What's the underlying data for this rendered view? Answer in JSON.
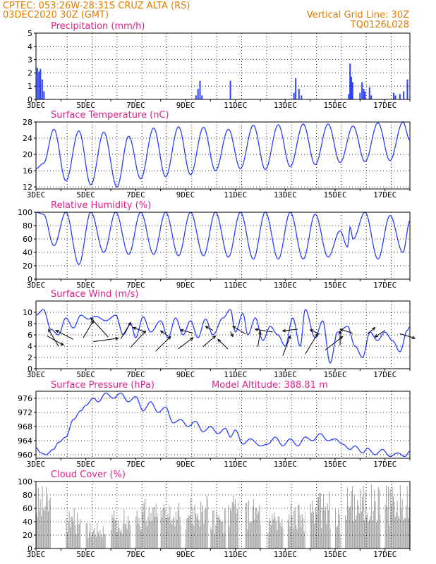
{
  "header": {
    "line1": "CPTEC:   053:26W-28:31S   CRUZ ALTA (RS)",
    "line2": "03DEC2020 30Z (GMT)",
    "right1": "Vertical Grid Line: 30Z",
    "right2": "TQ0126L028"
  },
  "x_axis": {
    "tick_labels": [
      "3DEC",
      "5DEC",
      "7DEC",
      "9DEC",
      "11DEC",
      "13DEC",
      "15DEC",
      "17DEC"
    ],
    "start_day": 3,
    "end_day": 18
  },
  "colors": {
    "series": "#2b3fff",
    "cloud": "#a0a0a0",
    "title": "#e0208a",
    "header": "#e07b00"
  },
  "chart_data": [
    {
      "id": "precip",
      "type": "bar",
      "title": "Precipitation (mm/h)",
      "ylim": [
        0,
        5
      ],
      "yticks": [
        0,
        1,
        2,
        3,
        4,
        5
      ],
      "x_units": "day of December 2020",
      "bars": [
        [
          3.05,
          2.4
        ],
        [
          3.12,
          2.1
        ],
        [
          3.18,
          2.3
        ],
        [
          3.25,
          1.5
        ],
        [
          3.32,
          0.6
        ],
        [
          9.42,
          0.3
        ],
        [
          9.5,
          0.8
        ],
        [
          9.58,
          1.4
        ],
        [
          9.66,
          0.3
        ],
        [
          10.8,
          1.4
        ],
        [
          13.35,
          0.5
        ],
        [
          13.42,
          1.6
        ],
        [
          13.55,
          0.8
        ],
        [
          13.65,
          0.3
        ],
        [
          15.55,
          0.4
        ],
        [
          15.6,
          2.7
        ],
        [
          15.65,
          1.7
        ],
        [
          15.7,
          1.3
        ],
        [
          16.0,
          0.5
        ],
        [
          16.08,
          1.3
        ],
        [
          16.15,
          0.8
        ],
        [
          16.2,
          0.6
        ],
        [
          16.38,
          0.9
        ],
        [
          16.45,
          0.3
        ],
        [
          17.35,
          0.5
        ],
        [
          17.42,
          0.3
        ],
        [
          17.6,
          0.4
        ],
        [
          17.75,
          0.6
        ],
        [
          17.9,
          1.5
        ]
      ]
    },
    {
      "id": "temp",
      "type": "line",
      "title": "Surface Temperature (nC)",
      "ylim": [
        11.5,
        28
      ],
      "yticks": [
        12,
        16,
        20,
        24,
        28
      ],
      "min_max": [
        [
          3.0,
          16.5
        ],
        [
          3.3,
          17.8
        ],
        [
          3.72,
          26.2
        ],
        [
          4.2,
          13.5
        ],
        [
          4.72,
          25.8
        ],
        [
          5.2,
          12.5
        ],
        [
          5.72,
          25.5
        ],
        [
          6.25,
          12
        ],
        [
          6.72,
          24.5
        ],
        [
          7.2,
          14
        ],
        [
          7.72,
          26.5
        ],
        [
          8.2,
          14.5
        ],
        [
          8.72,
          26.8
        ],
        [
          9.2,
          15
        ],
        [
          9.72,
          26.7
        ],
        [
          10.2,
          16
        ],
        [
          10.72,
          26.2
        ],
        [
          11.2,
          16.5
        ],
        [
          11.72,
          27.2
        ],
        [
          12.2,
          16.3
        ],
        [
          12.72,
          27.3
        ],
        [
          13.2,
          17
        ],
        [
          13.72,
          27.5
        ],
        [
          14.2,
          17.5
        ],
        [
          14.72,
          27.5
        ],
        [
          15.2,
          18
        ],
        [
          15.72,
          27
        ],
        [
          16.2,
          18.2
        ],
        [
          16.72,
          27.8
        ],
        [
          17.2,
          18.5
        ],
        [
          17.72,
          28
        ],
        [
          18.0,
          23.5
        ]
      ]
    },
    {
      "id": "rh",
      "type": "line",
      "title": "Relative Humidity (%)",
      "ylim": [
        0,
        100
      ],
      "yticks": [
        0,
        20,
        40,
        60,
        80,
        100
      ],
      "min_max": [
        [
          3.0,
          100
        ],
        [
          3.3,
          97
        ],
        [
          3.72,
          50
        ],
        [
          4.2,
          100
        ],
        [
          4.72,
          22
        ],
        [
          5.2,
          100
        ],
        [
          5.72,
          40
        ],
        [
          6.2,
          100
        ],
        [
          6.72,
          37
        ],
        [
          7.2,
          100
        ],
        [
          7.72,
          37
        ],
        [
          8.2,
          100
        ],
        [
          8.72,
          35
        ],
        [
          9.2,
          100
        ],
        [
          9.72,
          35
        ],
        [
          10.2,
          100
        ],
        [
          10.72,
          33
        ],
        [
          11.2,
          100
        ],
        [
          11.72,
          30
        ],
        [
          12.2,
          100
        ],
        [
          12.72,
          30
        ],
        [
          13.2,
          100
        ],
        [
          13.72,
          30
        ],
        [
          14.2,
          97
        ],
        [
          14.72,
          33
        ],
        [
          15.2,
          72
        ],
        [
          15.5,
          48
        ],
        [
          15.6,
          78
        ],
        [
          15.72,
          60
        ],
        [
          16.2,
          100
        ],
        [
          16.72,
          30
        ],
        [
          17.2,
          95
        ],
        [
          17.72,
          40
        ],
        [
          18.0,
          87
        ]
      ]
    },
    {
      "id": "wind",
      "type": "line",
      "title": "Surface Wind (m/s)",
      "ylim": [
        0,
        12
      ],
      "yticks": [
        0,
        2,
        4,
        6,
        8,
        10
      ],
      "min_max": [
        [
          3.0,
          9.5
        ],
        [
          3.3,
          10.5
        ],
        [
          3.6,
          7
        ],
        [
          3.9,
          6
        ],
        [
          4.2,
          9
        ],
        [
          4.5,
          7.2
        ],
        [
          4.8,
          9.5
        ],
        [
          5.1,
          8.8
        ],
        [
          5.4,
          9.3
        ],
        [
          5.8,
          8.5
        ],
        [
          6.2,
          9.5
        ],
        [
          6.5,
          6
        ],
        [
          6.8,
          8
        ],
        [
          7.0,
          5.5
        ],
        [
          7.3,
          9.2
        ],
        [
          7.6,
          6.5
        ],
        [
          8.0,
          8.5
        ],
        [
          8.3,
          5.5
        ],
        [
          8.6,
          9
        ],
        [
          8.9,
          6
        ],
        [
          9.2,
          8.5
        ],
        [
          9.5,
          5.5
        ],
        [
          9.8,
          8.8
        ],
        [
          10.1,
          6
        ],
        [
          10.5,
          9
        ],
        [
          10.8,
          10.5
        ],
        [
          11.0,
          6.5
        ],
        [
          11.3,
          9.8
        ],
        [
          11.5,
          6
        ],
        [
          11.8,
          9
        ],
        [
          12.1,
          5
        ],
        [
          12.4,
          7.5
        ],
        [
          12.7,
          6
        ],
        [
          13.0,
          4
        ],
        [
          13.3,
          9
        ],
        [
          13.6,
          4
        ],
        [
          13.8,
          10.5
        ],
        [
          14.2,
          5.5
        ],
        [
          14.5,
          8.5
        ],
        [
          14.8,
          1
        ],
        [
          15.1,
          6.5
        ],
        [
          15.5,
          7.5
        ],
        [
          15.8,
          4
        ],
        [
          16.1,
          2
        ],
        [
          16.4,
          6.5
        ],
        [
          16.7,
          5
        ],
        [
          17.0,
          6.5
        ],
        [
          17.3,
          5
        ],
        [
          17.6,
          3
        ],
        [
          17.9,
          6.8
        ],
        [
          18.0,
          7.5
        ]
      ],
      "arrows": [
        [
          3.45,
          5.8,
          4.1,
          4.2
        ],
        [
          3.9,
          4.0,
          3.5,
          7.0
        ],
        [
          4.5,
          5.2,
          3.8,
          6.8
        ],
        [
          4.9,
          5.5,
          5.3,
          8.5
        ],
        [
          5.3,
          4.8,
          6.3,
          5.4
        ],
        [
          5.9,
          5.6,
          5.2,
          9.0
        ],
        [
          6.4,
          5.3,
          6.8,
          8.2
        ],
        [
          6.8,
          3.8,
          7.4,
          6.7
        ],
        [
          7.4,
          6.5,
          6.9,
          7.3
        ],
        [
          7.8,
          3.1,
          8.4,
          5.7
        ],
        [
          8.3,
          5.8,
          8.0,
          6.7
        ],
        [
          8.7,
          3.5,
          9.3,
          5.5
        ],
        [
          9.3,
          6.3,
          8.8,
          6.9
        ],
        [
          9.7,
          3.9,
          10.2,
          5.8
        ],
        [
          10.1,
          6.8,
          9.8,
          7.5
        ],
        [
          10.7,
          3.5,
          10.3,
          5.2
        ],
        [
          10.8,
          6.6,
          10.9,
          5.7
        ],
        [
          11.4,
          6.2,
          10.9,
          7.5
        ],
        [
          11.9,
          3.9,
          12.0,
          6.6
        ],
        [
          12.5,
          6.5,
          11.8,
          7.0
        ],
        [
          12.9,
          2.3,
          13.2,
          5.8
        ],
        [
          13.5,
          7.0,
          12.9,
          6.7
        ],
        [
          13.8,
          2.6,
          14.3,
          6.2
        ],
        [
          14.4,
          6.1,
          14.0,
          6.9
        ],
        [
          14.6,
          3.3,
          15.3,
          5.7
        ],
        [
          15.2,
          4.1,
          15.2,
          6.6
        ],
        [
          15.7,
          6.3,
          15.2,
          7.0
        ],
        [
          16.3,
          6.2,
          16.6,
          7.3
        ],
        [
          17.0,
          6.8,
          16.6,
          5.6
        ],
        [
          17.6,
          6.2,
          18.2,
          5.4
        ]
      ]
    },
    {
      "id": "pressure",
      "type": "line",
      "title": "Surface Pressure (hPa)",
      "annotation": "Model Altitude: 388.81 m",
      "ylim": [
        959,
        978
      ],
      "yticks": [
        960,
        964,
        968,
        972,
        976
      ],
      "min_max": [
        [
          3.0,
          962
        ],
        [
          3.2,
          960.5
        ],
        [
          3.4,
          960
        ],
        [
          3.7,
          961.5
        ],
        [
          3.9,
          963.5
        ],
        [
          4.2,
          965
        ],
        [
          4.5,
          970
        ],
        [
          4.8,
          972.5
        ],
        [
          5.0,
          974
        ],
        [
          5.3,
          976
        ],
        [
          5.5,
          975
        ],
        [
          5.8,
          977.5
        ],
        [
          6.1,
          976
        ],
        [
          6.4,
          977.5
        ],
        [
          6.7,
          975
        ],
        [
          7.0,
          976.5
        ],
        [
          7.3,
          972.5
        ],
        [
          7.6,
          975
        ],
        [
          7.9,
          972
        ],
        [
          8.2,
          973.5
        ],
        [
          8.5,
          969
        ],
        [
          8.8,
          970
        ],
        [
          9.1,
          968
        ],
        [
          9.4,
          969.5
        ],
        [
          9.7,
          966.5
        ],
        [
          10.0,
          968
        ],
        [
          10.3,
          966
        ],
        [
          10.6,
          967.5
        ],
        [
          10.8,
          965
        ],
        [
          11.0,
          967
        ],
        [
          11.3,
          963
        ],
        [
          11.6,
          964.5
        ],
        [
          12.0,
          962.5
        ],
        [
          12.3,
          963
        ],
        [
          12.6,
          965
        ],
        [
          12.9,
          962.5
        ],
        [
          13.2,
          964.5
        ],
        [
          13.5,
          962.5
        ],
        [
          13.8,
          965
        ],
        [
          14.1,
          964
        ],
        [
          14.4,
          966
        ],
        [
          14.7,
          964
        ],
        [
          15.0,
          964.5
        ],
        [
          15.3,
          963
        ],
        [
          15.6,
          961.5
        ],
        [
          15.8,
          962.5
        ],
        [
          16.1,
          960.5
        ],
        [
          16.3,
          961.8
        ],
        [
          16.6,
          960
        ],
        [
          16.9,
          961.5
        ],
        [
          17.2,
          959.5
        ],
        [
          17.5,
          960.5
        ],
        [
          17.8,
          959.5
        ],
        [
          18.0,
          961
        ]
      ]
    },
    {
      "id": "cloud",
      "type": "area",
      "title": "Cloud Cover (%)",
      "ylim": [
        0,
        100
      ],
      "yticks": [
        0,
        20,
        40,
        60,
        80,
        100
      ],
      "blocks": [
        [
          3.0,
          3.6,
          95
        ],
        [
          4.2,
          4.8,
          60
        ],
        [
          5.0,
          5.8,
          40
        ],
        [
          6.0,
          6.8,
          60
        ],
        [
          7.0,
          7.9,
          75
        ],
        [
          8.0,
          8.8,
          70
        ],
        [
          9.0,
          9.9,
          80
        ],
        [
          10.0,
          10.6,
          60
        ],
        [
          10.7,
          11.1,
          90
        ],
        [
          11.4,
          12.0,
          75
        ],
        [
          12.3,
          12.9,
          55
        ],
        [
          13.1,
          13.8,
          70
        ],
        [
          14.0,
          14.8,
          85
        ],
        [
          15.0,
          15.2,
          60
        ],
        [
          15.4,
          16.8,
          98
        ],
        [
          17.0,
          18.0,
          95
        ]
      ]
    }
  ]
}
